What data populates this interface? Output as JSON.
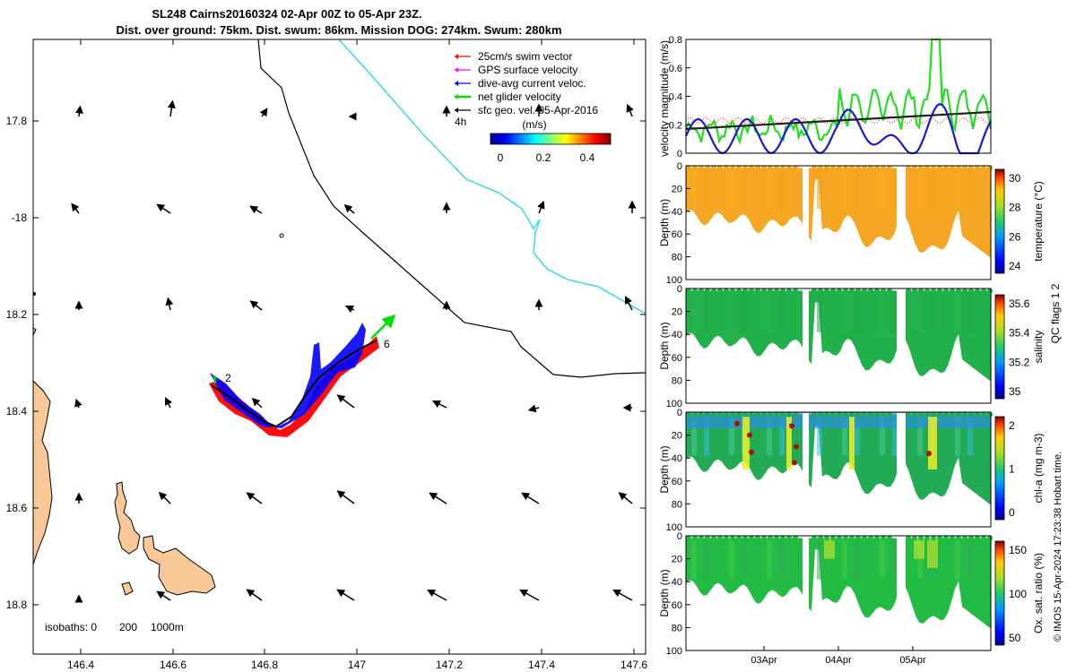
{
  "title": {
    "line1": "SL248 Cairns20160324 02-Apr 00Z to 05-Apr 23Z.",
    "line2": "Dist. over ground: 75km. Dist. swum: 86km. Mission DOG: 274km. Swum: 280km"
  },
  "map": {
    "lon_ticks": [
      "146.4",
      "146.6",
      "146.8",
      "147",
      "147.2",
      "147.4",
      "147.6"
    ],
    "lat_ticks": [
      "17.8",
      "-18",
      "18.2",
      "18.4",
      "18.6",
      "18.8"
    ],
    "legend": [
      {
        "label": "25cm/s swim vector",
        "color": "#ff0000"
      },
      {
        "label": "GPS surface velocity",
        "color": "#ff00ff"
      },
      {
        "label": "dive-avg current veloc.",
        "color": "#0000ff"
      },
      {
        "label": "net glider velocity",
        "color": "#00e000"
      },
      {
        "label": "sfc geo. vel. 05-Apr-2016",
        "color": "#000000"
      }
    ],
    "vector_note": "4h",
    "colorbar_label": "(m/s)",
    "colorbar_ticks": [
      "0",
      "0.2",
      "0.4"
    ],
    "track_labels": [
      "2",
      "6"
    ],
    "isobaths_label": "isobaths: 0",
    "isobath_200": "200",
    "isobath_1000": "1000m",
    "land_color": "#f8c898",
    "isobath_1000_color": "#33dddd"
  },
  "velocity_panel": {
    "ylabel": "velocity magnitude (m/s)",
    "yticks": [
      "0",
      "0.2",
      "0.4",
      "0.6",
      "0.8"
    ]
  },
  "profile_panels": [
    {
      "name": "temperature",
      "ylabel": "Depth (m)",
      "cbar_label": "temperature (°C)",
      "cbar_ticks": [
        "30",
        "28",
        "26",
        "24"
      ]
    },
    {
      "name": "salinity",
      "ylabel": "Depth (m)",
      "cbar_label": "salinity",
      "cbar_ticks": [
        "35.6",
        "35.4",
        "35.2",
        "35"
      ]
    },
    {
      "name": "chl-a",
      "ylabel": "Depth (m)",
      "cbar_label": "chl-a (mg m-3)",
      "cbar_ticks": [
        "2",
        "1",
        "0"
      ]
    },
    {
      "name": "oxsat",
      "ylabel": "Depth (m)",
      "cbar_label": "Ox. sat. ratio (%)",
      "cbar_ticks": [
        "150",
        "100",
        "50"
      ]
    }
  ],
  "depth_ticks": [
    "0",
    "20",
    "40",
    "60",
    "80",
    "100"
  ],
  "time_ticks": [
    "03Apr",
    "04Apr",
    "05Apr"
  ],
  "qc_note": "QC flags 1  2",
  "credit": "© IMOS 15-Apr-2024 17:23:38 Hobart time.",
  "chart_data": {
    "type": "map+timeseries",
    "map_xlim": [
      146.3,
      147.63
    ],
    "map_ylim_south": [
      17.65,
      18.9
    ],
    "velocity_ylim": [
      0,
      0.8
    ],
    "depth_ylim": [
      0,
      100
    ],
    "temperature_range": [
      23.8,
      30.5
    ],
    "salinity_range": [
      34.85,
      35.75
    ],
    "chla_range": [
      0,
      2
    ],
    "oxsat_range": [
      20,
      175
    ]
  }
}
